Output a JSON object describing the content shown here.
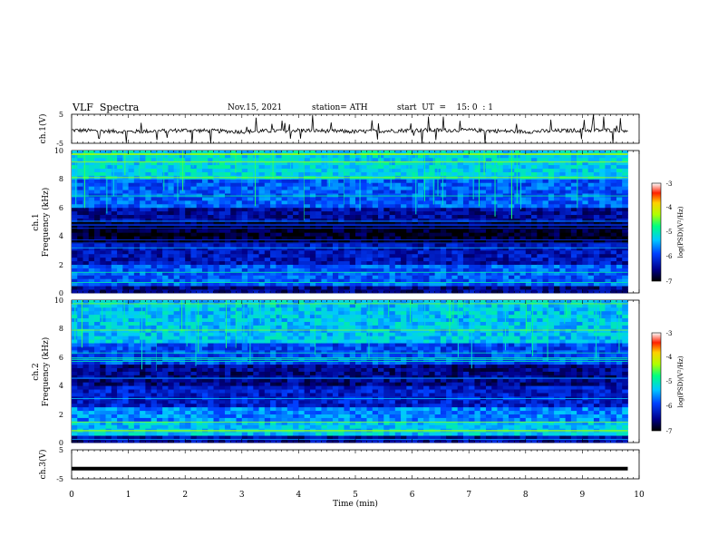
{
  "header": {
    "title": "VLF  Spectra",
    "date": "Nov.15, 2021",
    "station": "station= ATH",
    "start": "start  UT  =    15: 0  : 1"
  },
  "chart_data": [
    {
      "type": "line",
      "ylabel": "ch.1(V)",
      "ylim": [
        -5,
        5
      ],
      "y_ticks": [
        "5",
        "-5"
      ],
      "x": [
        0,
        1,
        2,
        3,
        4,
        5,
        6,
        7,
        8,
        9,
        9.8
      ],
      "y": [
        -0.5,
        -1,
        -0.5,
        -1,
        -0.5,
        -1,
        -0.5,
        -0.5,
        -1,
        -0.5,
        -0.5
      ]
    },
    {
      "type": "heatmap",
      "ylabel": "ch.1\nFrequency (kHz)",
      "ylim": [
        0,
        10
      ],
      "y_ticks": [
        "0",
        "2",
        "4",
        "6",
        "8",
        "10"
      ],
      "colorbar": {
        "label": "log(PSD)(V²/Hz)",
        "ticks": [
          "-3",
          "-4",
          "-5",
          "-6",
          "-7"
        ]
      },
      "bands": [
        {
          "f": [
            8,
            10
          ],
          "level": -5.2
        },
        {
          "f": [
            6,
            8
          ],
          "level": -5.8
        },
        {
          "f": [
            5,
            6
          ],
          "level": -6.4
        },
        {
          "f": [
            3.5,
            5
          ],
          "level": -6.9
        },
        {
          "f": [
            2,
            3.5
          ],
          "level": -6.3
        },
        {
          "f": [
            0.5,
            2
          ],
          "level": -5.8
        },
        {
          "f": [
            0,
            0.5
          ],
          "level": -6.5
        }
      ]
    },
    {
      "type": "heatmap",
      "ylabel": "ch.2\nFrequency (kHz)",
      "ylim": [
        0,
        10
      ],
      "y_ticks": [
        "0",
        "2",
        "4",
        "6",
        "8",
        "10"
      ],
      "colorbar": {
        "label": "log(PSD)(V²/Hz)",
        "ticks": [
          "-3",
          "-4",
          "-5",
          "-6",
          "-7"
        ]
      },
      "bands": [
        {
          "f": [
            7,
            10
          ],
          "level": -5.3
        },
        {
          "f": [
            5.5,
            7
          ],
          "level": -5.9
        },
        {
          "f": [
            4,
            5.5
          ],
          "level": -6.5
        },
        {
          "f": [
            2.5,
            4
          ],
          "level": -6.2
        },
        {
          "f": [
            1.5,
            2.5
          ],
          "level": -5.6
        },
        {
          "f": [
            0.5,
            1.5
          ],
          "level": -5.3
        },
        {
          "f": [
            0,
            0.5
          ],
          "level": -6.4
        }
      ]
    },
    {
      "type": "line",
      "ylabel": "ch.3(V)",
      "ylim": [
        -5,
        5
      ],
      "y_ticks": [
        "5",
        "-5"
      ],
      "x": [
        0,
        9.8
      ],
      "y": [
        -1.5,
        -1.5
      ],
      "xlabel": "Time  (min)",
      "xlim": [
        0,
        10
      ],
      "x_ticks": [
        "0",
        "1",
        "2",
        "3",
        "4",
        "5",
        "6",
        "7",
        "8",
        "9",
        "10"
      ]
    }
  ]
}
